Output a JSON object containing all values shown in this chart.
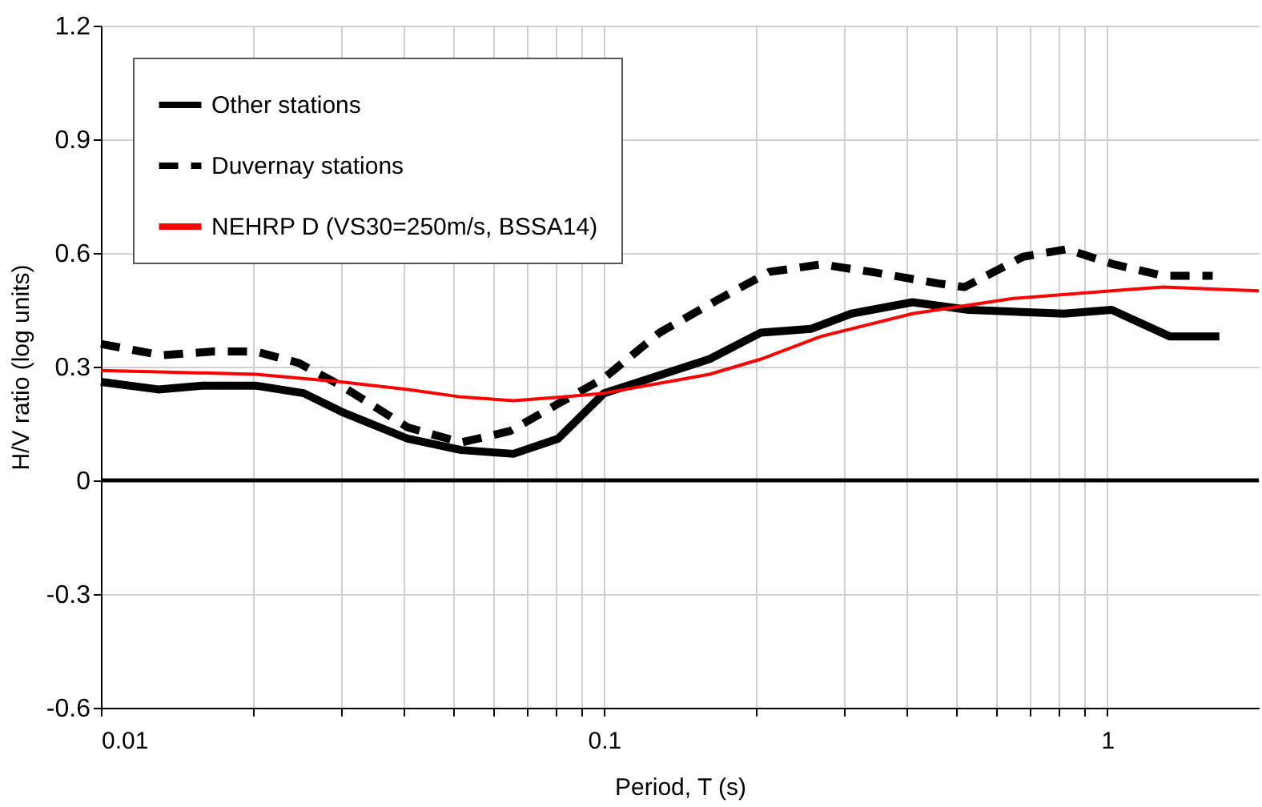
{
  "chart_data": {
    "type": "line",
    "xlabel": "Period, T (s)",
    "ylabel": "H/V ratio (log units)",
    "log": "x",
    "xlim": [
      0.01,
      2
    ],
    "ylim": [
      -0.6,
      1.2
    ],
    "xticks": [
      0.01,
      {
        "value": 0.02,
        "label": null
      },
      {
        "value": 0.03,
        "label": null
      },
      {
        "value": 0.04,
        "label": null
      },
      {
        "value": 0.05,
        "label": null
      },
      {
        "value": 0.06,
        "label": null
      },
      {
        "value": 0.07,
        "label": null
      },
      {
        "value": 0.08,
        "label": null
      },
      {
        "value": 0.09,
        "label": null
      },
      0.1,
      {
        "value": 0.2,
        "label": null
      },
      {
        "value": 0.3,
        "label": null
      },
      {
        "value": 0.4,
        "label": null
      },
      {
        "value": 0.5,
        "label": null
      },
      {
        "value": 0.6,
        "label": null
      },
      {
        "value": 0.7,
        "label": null
      },
      {
        "value": 0.8,
        "label": null
      },
      {
        "value": 0.9,
        "label": null
      },
      1
    ],
    "yticks": [
      -0.6,
      -0.3,
      0,
      0.3,
      0.6,
      0.9,
      1.2
    ],
    "grid": true,
    "legend": "top left",
    "marker": "none",
    "ref_lines": [
      {
        "axis": "y",
        "value": 0,
        "color": "#000000"
      }
    ],
    "series": [
      {
        "name": "Other stations",
        "color": "#000000",
        "line_style": "solid",
        "x": [
          0.01,
          0.013,
          0.0159,
          0.0203,
          0.0253,
          0.0302,
          0.0407,
          0.052,
          0.066,
          0.081,
          0.1,
          0.162,
          0.205,
          0.258,
          0.31,
          0.41,
          0.53,
          0.82,
          1.02,
          1.33,
          1.67
        ],
        "values": [
          0.26,
          0.24,
          0.25,
          0.25,
          0.23,
          0.18,
          0.11,
          0.08,
          0.07,
          0.11,
          0.23,
          0.32,
          0.39,
          0.4,
          0.44,
          0.47,
          0.45,
          0.44,
          0.45,
          0.38,
          0.38
        ]
      },
      {
        "name": "Duvernay stations",
        "color": "#000000",
        "line_style": "dashed",
        "x": [
          0.01,
          0.0132,
          0.0167,
          0.0203,
          0.0247,
          0.03,
          0.0407,
          0.052,
          0.065,
          0.083,
          0.1,
          0.129,
          0.17,
          0.213,
          0.27,
          0.34,
          0.46,
          0.52,
          0.68,
          0.83,
          1.03,
          1.29,
          1.62
        ],
        "values": [
          0.36,
          0.33,
          0.34,
          0.34,
          0.31,
          0.25,
          0.14,
          0.1,
          0.13,
          0.21,
          0.27,
          0.39,
          0.48,
          0.55,
          0.57,
          0.55,
          0.52,
          0.51,
          0.59,
          0.61,
          0.57,
          0.54,
          0.54
        ]
      },
      {
        "name": "NEHRP D (VS30=250m/s, BSSA14)",
        "color": "#ff0000",
        "line_style": "solid",
        "x": [
          0.01,
          0.0203,
          0.03,
          0.0407,
          0.052,
          0.066,
          0.083,
          0.1,
          0.162,
          0.205,
          0.27,
          0.41,
          0.65,
          1.02,
          1.29,
          2
        ],
        "values": [
          0.29,
          0.28,
          0.26,
          0.24,
          0.22,
          0.21,
          0.22,
          0.23,
          0.28,
          0.32,
          0.38,
          0.44,
          0.48,
          0.5,
          0.51,
          0.5
        ]
      }
    ]
  }
}
